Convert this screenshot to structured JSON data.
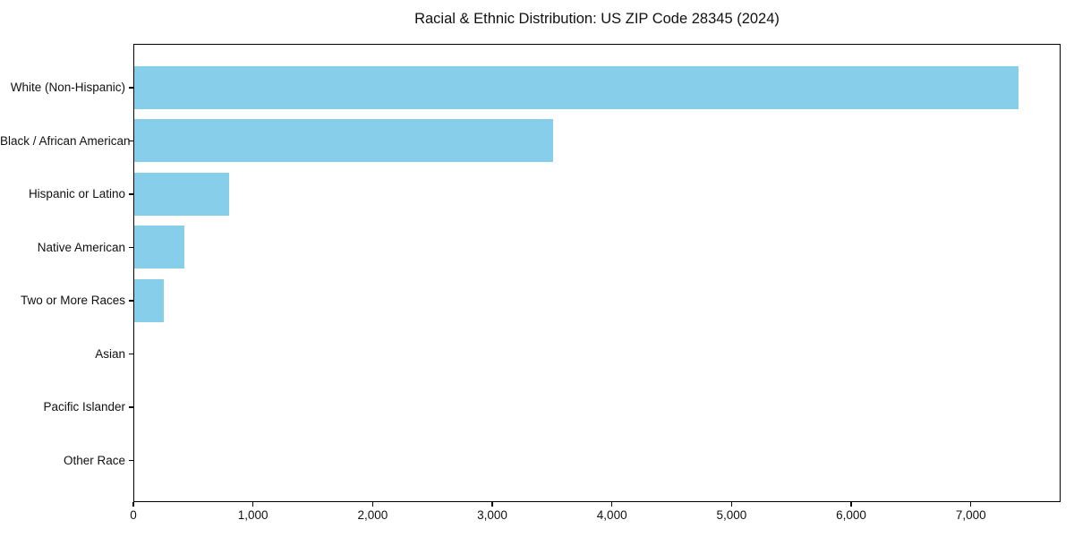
{
  "chart_data": {
    "type": "bar",
    "orientation": "horizontal",
    "title": "Racial & Ethnic Distribution: US ZIP Code 28345 (2024)",
    "categories": [
      "White (Non-Hispanic)",
      "Black / African American",
      "Hispanic or Latino",
      "Native American",
      "Two or More Races",
      "Asian",
      "Pacific Islander",
      "Other Race"
    ],
    "values": [
      7390,
      3500,
      795,
      420,
      245,
      0,
      0,
      0
    ],
    "xlabel": "",
    "ylabel": "",
    "xlim": [
      0,
      7750
    ],
    "x_ticks": [
      0,
      1000,
      2000,
      3000,
      4000,
      5000,
      6000,
      7000
    ],
    "x_tick_labels": [
      "0",
      "1,000",
      "2,000",
      "3,000",
      "4,000",
      "5,000",
      "6,000",
      "7,000"
    ],
    "bar_color": "#87CEEB",
    "spine_color": "#000000",
    "grid": false,
    "legend": null
  }
}
